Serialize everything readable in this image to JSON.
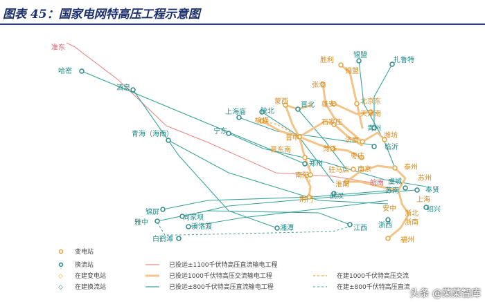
{
  "header": {
    "title": "图表 45：国家电网特高压工程示意图"
  },
  "colors": {
    "ac1000": "#f6c98a",
    "ac1000_built": "#eec48c",
    "dc1100": "#e88a8a",
    "dc800": "#3aa39a",
    "node_sub": "#e8a23a",
    "node_conv": "#2c8a86",
    "label_teal": "#1f8a86",
    "label_orange": "#d98a1c",
    "label_red": "#e05a68"
  },
  "stations": [
    {
      "id": "zhundong",
      "name": "准东",
      "tone": "red"
    },
    {
      "id": "hami",
      "name": "哈密",
      "tone": "teal"
    },
    {
      "id": "jiuquan",
      "name": "酒泉",
      "tone": "teal"
    },
    {
      "id": "qinghai",
      "name": "青海（海南）",
      "tone": "teal"
    },
    {
      "id": "ningdong",
      "name": "宁东",
      "tone": "teal"
    },
    {
      "id": "shanghaimiao",
      "name": "上海庙",
      "tone": "teal"
    },
    {
      "id": "shanbei",
      "name": "陕北",
      "tone": "teal"
    },
    {
      "id": "yuheng",
      "name": "榆横",
      "tone": "orange"
    },
    {
      "id": "mengxi",
      "name": "蒙西",
      "tone": "orange"
    },
    {
      "id": "jinbei",
      "name": "晋北",
      "tone": "teal"
    },
    {
      "id": "jinzhong",
      "name": "晋中",
      "tone": "orange"
    },
    {
      "id": "jindongnan",
      "name": "晋东南",
      "tone": "orange"
    },
    {
      "id": "shengli",
      "name": "胜利",
      "tone": "orange"
    },
    {
      "id": "ximeng",
      "name": "锡盟",
      "tone": "teal"
    },
    {
      "id": "zalute",
      "name": "扎鲁特",
      "tone": "teal"
    },
    {
      "id": "ximeng2",
      "name": "锡盟",
      "tone": "orange"
    },
    {
      "id": "zhangbei",
      "name": "张北",
      "tone": "orange"
    },
    {
      "id": "xiongan",
      "name": "雄安",
      "tone": "orange"
    },
    {
      "id": "beijingdong",
      "name": "北京东",
      "tone": "orange"
    },
    {
      "id": "tianjinnan",
      "name": "天津南",
      "tone": "orange"
    },
    {
      "id": "shijiazhuang",
      "name": "石家庄",
      "tone": "orange"
    },
    {
      "id": "jinan",
      "name": "济南",
      "tone": "orange"
    },
    {
      "id": "qingzhou",
      "name": "青州",
      "tone": "teal"
    },
    {
      "id": "weifang",
      "name": "潍坊",
      "tone": "orange"
    },
    {
      "id": "linyi",
      "name": "临沂",
      "tone": "teal"
    },
    {
      "id": "heze",
      "name": "菏泽",
      "tone": "orange"
    },
    {
      "id": "zaozhuang",
      "name": "枣庄",
      "tone": "orange"
    },
    {
      "id": "zhengzhou",
      "name": "郑州",
      "tone": "teal"
    },
    {
      "id": "nanyang",
      "name": "南阳",
      "tone": "orange"
    },
    {
      "id": "zhumadian",
      "name": "驻马店",
      "tone": "orange"
    },
    {
      "id": "nanjing",
      "name": "南京",
      "tone": "orange"
    },
    {
      "id": "taizhou",
      "name": "泰州",
      "tone": "orange"
    },
    {
      "id": "huinan",
      "name": "淮南",
      "tone": "orange"
    },
    {
      "id": "wannan",
      "name": "皖南",
      "tone": "red"
    },
    {
      "id": "yucheng",
      "name": "虞城",
      "tone": "teal"
    },
    {
      "id": "suzhou",
      "name": "苏州",
      "tone": "orange"
    },
    {
      "id": "sunan",
      "name": "苏南",
      "tone": "teal"
    },
    {
      "id": "fengxian",
      "name": "奉贤",
      "tone": "teal"
    },
    {
      "id": "shanghai",
      "name": "上海",
      "tone": "orange"
    },
    {
      "id": "jingmen",
      "name": "荆门",
      "tone": "orange"
    },
    {
      "id": "wuhan",
      "name": "武汉",
      "tone": "teal"
    },
    {
      "id": "anji",
      "name": "安中",
      "tone": "orange"
    },
    {
      "id": "shaoxing",
      "name": "绍兴",
      "tone": "teal"
    },
    {
      "id": "zhebei",
      "name": "浙北",
      "tone": "orange"
    },
    {
      "id": "zhejiangnan",
      "name": "浙南",
      "tone": "orange"
    },
    {
      "id": "fuzhou",
      "name": "福州",
      "tone": "orange"
    },
    {
      "id": "zhexi",
      "name": "浙西",
      "tone": "teal"
    },
    {
      "id": "jiangxi",
      "name": "江西",
      "tone": "teal"
    },
    {
      "id": "xiangtan",
      "name": "湘潭",
      "tone": "teal"
    },
    {
      "id": "jinping",
      "name": "锦屏",
      "tone": "teal"
    },
    {
      "id": "yazhong",
      "name": "雅中",
      "tone": "teal"
    },
    {
      "id": "xiangjiaba",
      "name": "向家坝",
      "tone": "teal"
    },
    {
      "id": "xiluodu",
      "name": "溪洛渡",
      "tone": "teal"
    },
    {
      "id": "baihetan",
      "name": "白鹤滩",
      "tone": "teal"
    }
  ],
  "legend": {
    "items": [
      {
        "id": "sub",
        "label": "变电站"
      },
      {
        "id": "conv",
        "label": "换流站"
      },
      {
        "id": "sub_build",
        "label": "在建变电站"
      },
      {
        "id": "conv_build",
        "label": "在建换流站"
      },
      {
        "id": "dc1100",
        "label": "已投运±1100千伏特高压直流输电工程"
      },
      {
        "id": "ac1000",
        "label": "已投运1000千伏特高压交流输电工程"
      },
      {
        "id": "dc800",
        "label": "已投运±800千伏特高压直流输电工程"
      },
      {
        "id": "ac1000_build",
        "label": "在建1000千伏特高压交流"
      },
      {
        "id": "dc800_build",
        "label": "在建±800千伏特高压直流"
      }
    ]
  },
  "watermark": {
    "text": "头条 @菜菜智库"
  }
}
